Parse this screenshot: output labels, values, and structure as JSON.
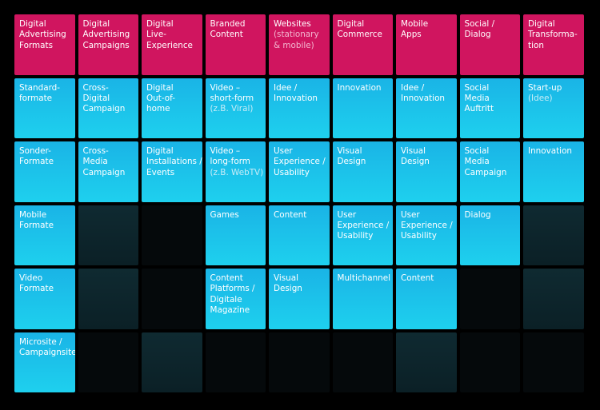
{
  "colors": {
    "header": "#d0155f",
    "item": "#1ec0ea",
    "empty_dark": "#0f2a31",
    "empty_black": "#05090b",
    "background": "#000000"
  },
  "grid": [
    [
      {
        "type": "header",
        "lines": [
          "Digital",
          "Advertising",
          "Formats"
        ]
      },
      {
        "type": "header",
        "lines": [
          "Digital",
          "Advertising",
          "Campaigns"
        ]
      },
      {
        "type": "header",
        "lines": [
          "Digital",
          "Live-",
          "Experience"
        ]
      },
      {
        "type": "header",
        "lines": [
          "Branded",
          "Content"
        ]
      },
      {
        "type": "header",
        "lines": [
          "Websites"
        ],
        "note": [
          "(stationary",
          "& mobile)"
        ]
      },
      {
        "type": "header",
        "lines": [
          "Digital",
          "Commerce"
        ]
      },
      {
        "type": "header",
        "lines": [
          "Mobile",
          "Apps"
        ]
      },
      {
        "type": "header",
        "lines": [
          "Social /",
          "Dialog"
        ]
      },
      {
        "type": "header",
        "lines": [
          "Digital",
          "Transforma-",
          "tion"
        ]
      }
    ],
    [
      {
        "type": "item",
        "lines": [
          "Standard-",
          "formate"
        ]
      },
      {
        "type": "item",
        "lines": [
          "Cross-",
          "Digital",
          "Campaign"
        ]
      },
      {
        "type": "item",
        "lines": [
          "Digital",
          "Out-of-",
          "home"
        ]
      },
      {
        "type": "item",
        "lines": [
          "Video –",
          "short-form"
        ],
        "note": [
          "(z.B. Viral)"
        ]
      },
      {
        "type": "item",
        "lines": [
          "Idee /",
          "Innovation"
        ]
      },
      {
        "type": "item",
        "lines": [
          "Innovation"
        ]
      },
      {
        "type": "item",
        "lines": [
          "Idee /",
          "Innovation"
        ]
      },
      {
        "type": "item",
        "lines": [
          "Social",
          "Media",
          "Auftritt"
        ]
      },
      {
        "type": "item",
        "lines": [
          "Start-up"
        ],
        "note": [
          "(Idee)"
        ]
      }
    ],
    [
      {
        "type": "item",
        "lines": [
          "Sonder-",
          "Formate"
        ]
      },
      {
        "type": "item",
        "lines": [
          "Cross-",
          "Media",
          "Campaign"
        ]
      },
      {
        "type": "item",
        "lines": [
          "Digital",
          "Installations /",
          "Events"
        ]
      },
      {
        "type": "item",
        "lines": [
          "Video –",
          "long-form"
        ],
        "note": [
          "(z.B. WebTV)"
        ]
      },
      {
        "type": "item",
        "lines": [
          "User",
          "Experience /",
          "Usability"
        ]
      },
      {
        "type": "item",
        "lines": [
          "Visual",
          "Design"
        ]
      },
      {
        "type": "item",
        "lines": [
          "Visual",
          "Design"
        ]
      },
      {
        "type": "item",
        "lines": [
          "Social",
          "Media",
          "Campaign"
        ]
      },
      {
        "type": "item",
        "lines": [
          "Innovation"
        ]
      }
    ],
    [
      {
        "type": "item",
        "lines": [
          "Mobile",
          "Formate"
        ]
      },
      {
        "type": "empty-dark",
        "lines": []
      },
      {
        "type": "empty-black",
        "lines": []
      },
      {
        "type": "item",
        "lines": [
          "Games"
        ]
      },
      {
        "type": "item",
        "lines": [
          "Content"
        ]
      },
      {
        "type": "item",
        "lines": [
          "User",
          "Experience /",
          "Usability"
        ]
      },
      {
        "type": "item",
        "lines": [
          "User",
          "Experience /",
          "Usability"
        ]
      },
      {
        "type": "item",
        "lines": [
          "Dialog"
        ]
      },
      {
        "type": "empty-dark",
        "lines": []
      }
    ],
    [
      {
        "type": "item",
        "lines": [
          "Video",
          "Formate"
        ]
      },
      {
        "type": "empty-dark",
        "lines": []
      },
      {
        "type": "empty-black",
        "lines": []
      },
      {
        "type": "item",
        "lines": [
          "Content",
          "Platforms /",
          "Digitale",
          "Magazine"
        ]
      },
      {
        "type": "item",
        "lines": [
          "Visual",
          "Design"
        ]
      },
      {
        "type": "item",
        "lines": [
          "Multichannel"
        ]
      },
      {
        "type": "item",
        "lines": [
          "Content"
        ]
      },
      {
        "type": "empty-black",
        "lines": []
      },
      {
        "type": "empty-dark",
        "lines": []
      }
    ],
    [
      {
        "type": "item",
        "lines": [
          "Microsite /",
          "Campaignsite"
        ]
      },
      {
        "type": "empty-black",
        "lines": []
      },
      {
        "type": "empty-dark",
        "lines": []
      },
      {
        "type": "empty-black",
        "lines": []
      },
      {
        "type": "empty-black",
        "lines": []
      },
      {
        "type": "empty-black",
        "lines": []
      },
      {
        "type": "empty-dark",
        "lines": []
      },
      {
        "type": "empty-black",
        "lines": []
      },
      {
        "type": "empty-black",
        "lines": []
      }
    ]
  ]
}
